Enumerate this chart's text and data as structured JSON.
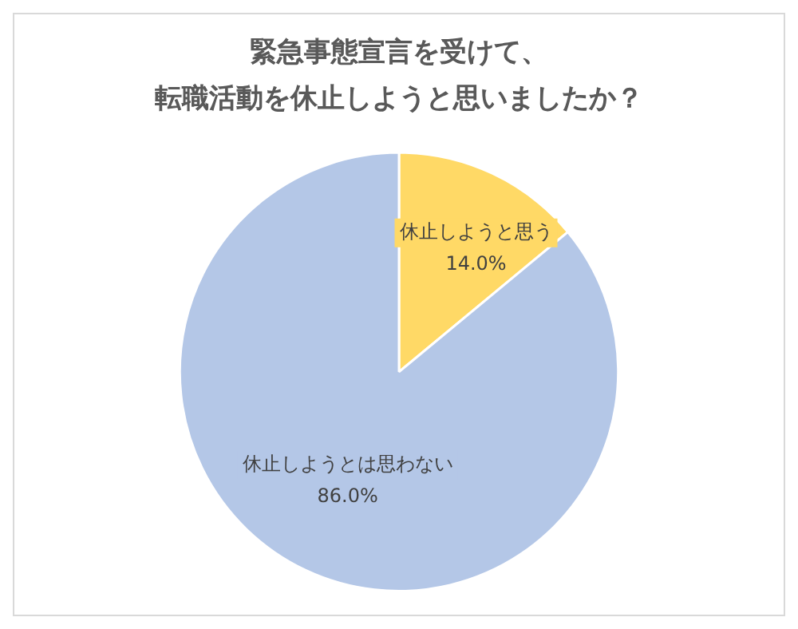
{
  "chart_data": {
    "type": "pie",
    "title": "緊急事態宣言を受けて、転職活動を休止しようと思いましたか？",
    "categories": [
      "休止しようと思う",
      "休止しようとは思わない"
    ],
    "values": [
      14.0,
      86.0
    ],
    "value_labels": [
      "14.0%",
      "86.0%"
    ],
    "colors": [
      "#ffd966",
      "#b4c7e7"
    ],
    "legend": false
  }
}
